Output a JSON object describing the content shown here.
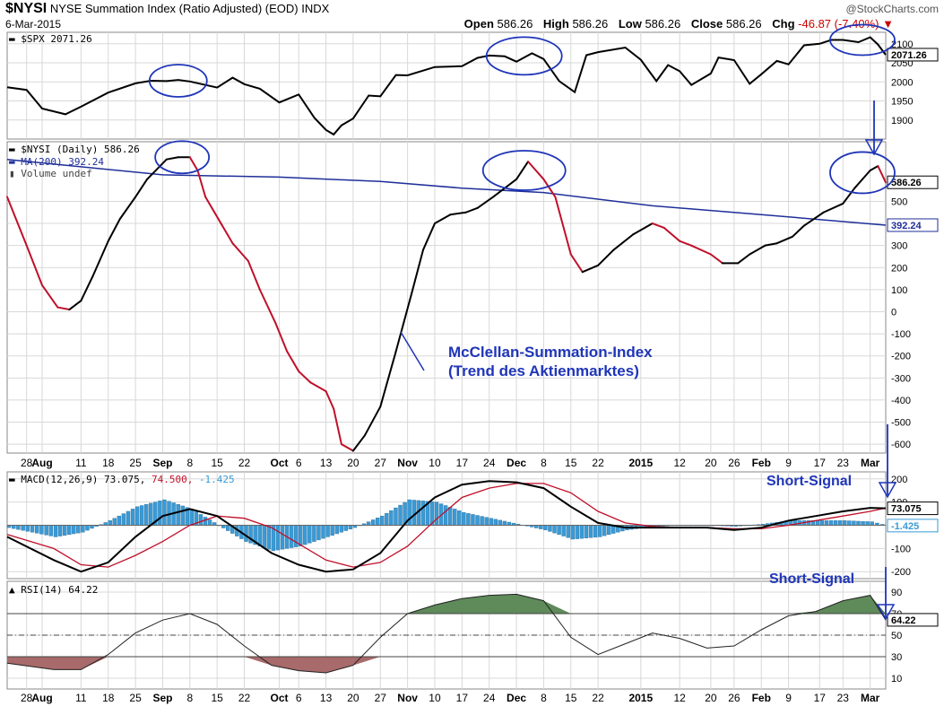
{
  "header": {
    "symbol": "$NYSI",
    "title": "NYSE Summation Index (Ratio Adjusted) (EOD)",
    "exchange": "INDX",
    "date": "6-Mar-2015",
    "brand": "@StockCharts.com",
    "open_label": "Open",
    "open": "586.26",
    "high_label": "High",
    "high": "586.26",
    "low_label": "Low",
    "low": "586.26",
    "close_label": "Close",
    "close": "586.26",
    "chg_label": "Chg",
    "chg": "-46.87 (-7.40%)",
    "down_arrow": "▼"
  },
  "legends": {
    "spx": "$SPX 2071.26",
    "nysi": "$NYSI (Daily) 586.26",
    "ma": "MA(200) 392.24",
    "volume": "Volume undef",
    "macd_prefix": "MACD(12,26,9) 73.075,",
    "macd_signal": "74.500,",
    "macd_hist": "-1.425",
    "rsi": "RSI(14) 64.22"
  },
  "annotations": {
    "mcclellan_1": "McClellan-Summation-Index",
    "mcclellan_2": "(Trend des Aktienmarktes)",
    "short_signal_macd": "Short-Signal",
    "short_signal_rsi": "Short-Signal"
  },
  "colors": {
    "ink": "#000000",
    "annotation_blue": "#1f35b8",
    "ma_line": "#1f2f99",
    "nysi_down": "#c0102a",
    "macd_hist": "#3a9ad6",
    "rsi_over": "#5f8a5a",
    "rsi_under": "#a86a6a",
    "grid": "#d8d8d8"
  },
  "chart_data": [
    {
      "type": "line",
      "name": "spx",
      "legend": "$SPX 2071.26",
      "x": [
        "2014-07-23",
        "2014-07-28",
        "2014-08-01",
        "2014-08-07",
        "2014-08-11",
        "2014-08-18",
        "2014-08-25",
        "2014-08-29",
        "2014-09-02",
        "2014-09-05",
        "2014-09-08",
        "2014-09-12",
        "2014-09-15",
        "2014-09-19",
        "2014-09-22",
        "2014-09-26",
        "2014-10-01",
        "2014-10-06",
        "2014-10-10",
        "2014-10-13",
        "2014-10-15",
        "2014-10-17",
        "2014-10-20",
        "2014-10-24",
        "2014-10-27",
        "2014-10-31",
        "2014-11-03",
        "2014-11-10",
        "2014-11-17",
        "2014-11-21",
        "2014-11-24",
        "2014-11-28",
        "2014-12-01",
        "2014-12-05",
        "2014-12-08",
        "2014-12-12",
        "2014-12-16",
        "2014-12-19",
        "2014-12-22",
        "2014-12-29",
        "2015-01-02",
        "2015-01-06",
        "2015-01-09",
        "2015-01-12",
        "2015-01-15",
        "2015-01-20",
        "2015-01-22",
        "2015-01-26",
        "2015-01-30",
        "2015-02-02",
        "2015-02-06",
        "2015-02-09",
        "2015-02-13",
        "2015-02-17",
        "2015-02-20",
        "2015-02-23",
        "2015-02-27",
        "2015-03-02",
        "2015-03-04",
        "2015-03-06"
      ],
      "values": [
        1986,
        1979,
        1930,
        1915,
        1935,
        1972,
        1996,
        2003,
        2002,
        2005,
        2001,
        1992,
        1985,
        2011,
        1994,
        1982,
        1946,
        1967,
        1906,
        1874,
        1862,
        1886,
        1904,
        1964,
        1962,
        2018,
        2017,
        2039,
        2041,
        2063,
        2069,
        2067,
        2053,
        2075,
        2060,
        2002,
        1973,
        2070,
        2078,
        2090,
        2058,
        2002,
        2044,
        2028,
        1992,
        2022,
        2064,
        2057,
        1995,
        2020,
        2055,
        2046,
        2096,
        2100,
        2110,
        2110,
        2104,
        2117,
        2098,
        2071
      ],
      "ylim": [
        1850,
        2130
      ],
      "yticks": [
        1900,
        1950,
        2000,
        2050,
        2100
      ]
    },
    {
      "type": "line",
      "name": "nysi",
      "legend": "$NYSI (Daily) 586.26",
      "x": [
        "2014-07-23",
        "2014-07-28",
        "2014-08-01",
        "2014-08-05",
        "2014-08-08",
        "2014-08-11",
        "2014-08-14",
        "2014-08-18",
        "2014-08-21",
        "2014-08-25",
        "2014-08-28",
        "2014-09-02",
        "2014-09-05",
        "2014-09-08",
        "2014-09-10",
        "2014-09-12",
        "2014-09-16",
        "2014-09-19",
        "2014-09-23",
        "2014-09-26",
        "2014-09-30",
        "2014-10-03",
        "2014-10-06",
        "2014-10-09",
        "2014-10-13",
        "2014-10-15",
        "2014-10-17",
        "2014-10-20",
        "2014-10-23",
        "2014-10-27",
        "2014-10-31",
        "2014-11-04",
        "2014-11-07",
        "2014-11-10",
        "2014-11-14",
        "2014-11-18",
        "2014-11-21",
        "2014-11-25",
        "2014-12-01",
        "2014-12-04",
        "2014-12-08",
        "2014-12-11",
        "2014-12-15",
        "2014-12-18",
        "2014-12-22",
        "2014-12-26",
        "2014-12-31",
        "2015-01-05",
        "2015-01-08",
        "2015-01-12",
        "2015-01-15",
        "2015-01-20",
        "2015-01-23",
        "2015-01-27",
        "2015-01-30",
        "2015-02-03",
        "2015-02-06",
        "2015-02-10",
        "2015-02-13",
        "2015-02-18",
        "2015-02-23",
        "2015-02-26",
        "2015-03-02",
        "2015-03-04",
        "2015-03-06"
      ],
      "values": [
        520,
        300,
        120,
        20,
        10,
        50,
        160,
        320,
        420,
        520,
        600,
        690,
        700,
        700,
        640,
        520,
        400,
        310,
        230,
        100,
        -50,
        -180,
        -270,
        -320,
        -360,
        -440,
        -600,
        -630,
        -560,
        -430,
        -180,
        80,
        280,
        400,
        440,
        450,
        470,
        520,
        600,
        680,
        600,
        520,
        260,
        180,
        210,
        280,
        350,
        400,
        380,
        320,
        300,
        260,
        220,
        220,
        260,
        300,
        310,
        340,
        390,
        450,
        490,
        560,
        640,
        660,
        586
      ],
      "ylim": [
        -640,
        770
      ],
      "yticks": [
        -600,
        -500,
        -400,
        -300,
        -200,
        -100,
        0,
        100,
        200,
        300,
        400,
        500
      ]
    },
    {
      "type": "line",
      "name": "ma200",
      "legend": "MA(200) 392.24",
      "x": [
        "2014-07-23",
        "2014-09-01",
        "2014-10-01",
        "2014-10-27",
        "2014-11-17",
        "2014-12-08",
        "2015-01-05",
        "2015-02-02",
        "2015-03-06"
      ],
      "values": [
        690,
        620,
        610,
        590,
        560,
        540,
        480,
        440,
        392
      ],
      "ylim": [
        -640,
        770
      ]
    },
    {
      "type": "line",
      "name": "macd",
      "legend": "MACD(12,26,9) 73.075, 74.500, -1.425",
      "x": [
        "2014-07-23",
        "2014-08-04",
        "2014-08-11",
        "2014-08-18",
        "2014-08-25",
        "2014-09-01",
        "2014-09-08",
        "2014-09-15",
        "2014-09-22",
        "2014-09-29",
        "2014-10-06",
        "2014-10-13",
        "2014-10-20",
        "2014-10-27",
        "2014-11-03",
        "2014-11-10",
        "2014-11-17",
        "2014-11-24",
        "2014-12-01",
        "2014-12-08",
        "2014-12-15",
        "2014-12-22",
        "2014-12-29",
        "2015-01-05",
        "2015-01-12",
        "2015-01-19",
        "2015-01-26",
        "2015-02-02",
        "2015-02-09",
        "2015-02-16",
        "2015-02-23",
        "2015-03-02",
        "2015-03-06"
      ],
      "series": [
        {
          "values": [
            -50,
            -150,
            -200,
            -160,
            -50,
            40,
            70,
            40,
            -40,
            -120,
            -170,
            -200,
            -190,
            -120,
            20,
            120,
            175,
            190,
            185,
            160,
            80,
            10,
            -10,
            -10,
            -10,
            -10,
            -20,
            -10,
            20,
            40,
            60,
            75,
            73
          ]
        },
        {
          "values": [
            -40,
            -100,
            -170,
            -180,
            -130,
            -70,
            0,
            40,
            30,
            -10,
            -80,
            -150,
            -180,
            -160,
            -90,
            20,
            120,
            160,
            180,
            180,
            140,
            60,
            10,
            -5,
            -10,
            -10,
            -15,
            -15,
            0,
            20,
            40,
            60,
            74.5
          ]
        },
        {
          "values": [
            -10,
            -50,
            -30,
            20,
            80,
            110,
            70,
            0,
            -70,
            -110,
            -90,
            -50,
            -10,
            40,
            110,
            100,
            55,
            30,
            5,
            -20,
            -60,
            -50,
            -20,
            -5,
            0,
            0,
            -5,
            5,
            20,
            20,
            20,
            15,
            -1.4
          ]
        }
      ],
      "ylim": [
        -230,
        230
      ],
      "yticks": [
        -200,
        -100,
        0,
        100,
        200
      ]
    },
    {
      "type": "line",
      "name": "rsi",
      "legend": "RSI(14) 64.22",
      "x": [
        "2014-07-23",
        "2014-08-04",
        "2014-08-11",
        "2014-08-18",
        "2014-08-25",
        "2014-09-01",
        "2014-09-08",
        "2014-09-15",
        "2014-09-22",
        "2014-09-29",
        "2014-10-06",
        "2014-10-13",
        "2014-10-20",
        "2014-10-27",
        "2014-11-03",
        "2014-11-10",
        "2014-11-17",
        "2014-11-24",
        "2014-12-01",
        "2014-12-08",
        "2014-12-15",
        "2014-12-22",
        "2014-12-29",
        "2015-01-05",
        "2015-01-12",
        "2015-01-19",
        "2015-01-26",
        "2015-02-02",
        "2015-02-09",
        "2015-02-16",
        "2015-02-23",
        "2015-03-02",
        "2015-03-06"
      ],
      "values": [
        24,
        18,
        18,
        32,
        52,
        64,
        70,
        60,
        40,
        22,
        17,
        15,
        22,
        48,
        70,
        78,
        84,
        87,
        88,
        82,
        48,
        32,
        42,
        52,
        47,
        38,
        40,
        55,
        68,
        72,
        82,
        87,
        64
      ],
      "ylim": [
        0,
        100
      ],
      "yticks": [
        10,
        30,
        50,
        70,
        90
      ]
    }
  ],
  "x_axis": {
    "labels": [
      "28",
      "Aug",
      "11",
      "18",
      "25",
      "Sep",
      "8",
      "15",
      "22",
      "Oct",
      "6",
      "13",
      "20",
      "27",
      "Nov",
      "10",
      "17",
      "24",
      "Dec",
      "8",
      "15",
      "22",
      "2015",
      "12",
      "20",
      "26",
      "Feb",
      "9",
      "17",
      "23",
      "Mar"
    ],
    "label_dates": [
      "2014-07-28",
      "2014-08-01",
      "2014-08-11",
      "2014-08-18",
      "2014-08-25",
      "2014-09-01",
      "2014-09-08",
      "2014-09-15",
      "2014-09-22",
      "2014-10-01",
      "2014-10-06",
      "2014-10-13",
      "2014-10-20",
      "2014-10-27",
      "2014-11-03",
      "2014-11-10",
      "2014-11-17",
      "2014-11-24",
      "2014-12-01",
      "2014-12-08",
      "2014-12-15",
      "2014-12-22",
      "2015-01-02",
      "2015-01-12",
      "2015-01-20",
      "2015-01-26",
      "2015-02-02",
      "2015-02-09",
      "2015-02-17",
      "2015-02-23",
      "2015-03-02"
    ],
    "bold": [
      "Aug",
      "Sep",
      "Oct",
      "Nov",
      "Dec",
      "2015",
      "Feb",
      "Mar"
    ]
  },
  "value_tags": {
    "spx": "2071.26",
    "nysi": "586.26",
    "ma": "392.24",
    "macd": "73.075",
    "macd_hist": "-1.425",
    "rsi": "64.22"
  }
}
